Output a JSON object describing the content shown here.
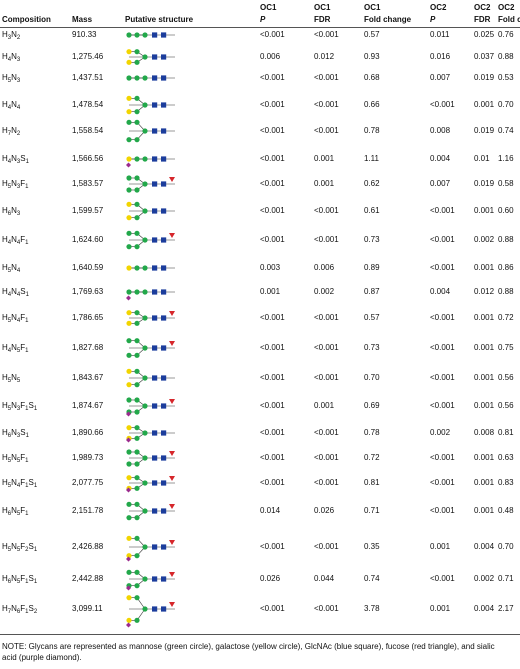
{
  "header": [
    {
      "label": "Composition"
    },
    {
      "label": "Mass"
    },
    {
      "label": "Putative structure"
    },
    {
      "group": "OC1",
      "label": "P"
    },
    {
      "group": "OC1",
      "label": "FDR"
    },
    {
      "group": "OC1",
      "label": "Fold change"
    },
    {
      "group": "OC2",
      "label": "P"
    },
    {
      "group": "OC2",
      "label": "FDR"
    },
    {
      "group": "OC2",
      "label": "Fold change"
    }
  ],
  "table": {
    "rows": [
      [
        "H3N2",
        "910.33",
        "<0.001",
        "<0.001",
        "0.57",
        "0.011",
        "0.025",
        "0.76"
      ],
      [
        "H4N3",
        "1,275.46",
        "0.006",
        "0.012",
        "0.93",
        "0.016",
        "0.037",
        "0.88"
      ],
      [
        "H5N3",
        "1,437.51",
        "<0.001",
        "<0.001",
        "0.68",
        "0.007",
        "0.019",
        "0.53"
      ],
      [
        "H4N4",
        "1,478.54",
        "<0.001",
        "<0.001",
        "0.66",
        "<0.001",
        "0.001",
        "0.70"
      ],
      [
        "H7N2",
        "1,558.54",
        "<0.001",
        "<0.001",
        "0.78",
        "0.008",
        "0.019",
        "0.74"
      ],
      [
        "H4N3S1",
        "1,566.56",
        "<0.001",
        "0.001",
        "1.11",
        "0.004",
        "0.01",
        "1.16"
      ],
      [
        "H5N3F1",
        "1,583.57",
        "<0.001",
        "0.001",
        "0.62",
        "0.007",
        "0.019",
        "0.58"
      ],
      [
        "H6N3",
        "1,599.57",
        "<0.001",
        "<0.001",
        "0.61",
        "<0.001",
        "0.001",
        "0.60"
      ],
      [
        "H4N4F1",
        "1,624.60",
        "<0.001",
        "<0.001",
        "0.73",
        "<0.001",
        "0.002",
        "0.88"
      ],
      [
        "H5N4",
        "1,640.59",
        "0.003",
        "0.006",
        "0.89",
        "<0.001",
        "0.001",
        "0.86"
      ],
      [
        "H4N4S1",
        "1,769.63",
        "0.001",
        "0.002",
        "0.87",
        "0.004",
        "0.012",
        "0.88"
      ],
      [
        "H5N4F1",
        "1,786.65",
        "<0.001",
        "<0.001",
        "0.57",
        "<0.001",
        "0.001",
        "0.72"
      ],
      [
        "H4N5F1",
        "1,827.68",
        "<0.001",
        "<0.001",
        "0.73",
        "<0.001",
        "0.001",
        "0.75"
      ],
      [
        "H5N5",
        "1,843.67",
        "<0.001",
        "<0.001",
        "0.70",
        "<0.001",
        "0.001",
        "0.56"
      ],
      [
        "H5N3F1S1",
        "1,874.67",
        "<0.001",
        "0.001",
        "0.69",
        "<0.001",
        "0.001",
        "0.56"
      ],
      [
        "H6N3S1",
        "1,890.66",
        "<0.001",
        "<0.001",
        "0.78",
        "0.002",
        "0.008",
        "0.81"
      ],
      [
        "H5N5F1",
        "1,989.73",
        "<0.001",
        "<0.001",
        "0.72",
        "<0.001",
        "0.001",
        "0.63"
      ],
      [
        "H5N4F1S1",
        "2,077.75",
        "<0.001",
        "<0.001",
        "0.81",
        "<0.001",
        "0.001",
        "0.83"
      ],
      [
        "H6N5F1",
        "2,151.78",
        "0.014",
        "0.026",
        "0.71",
        "<0.001",
        "0.001",
        "0.48"
      ],
      [
        "H5N5F2S1",
        "2,426.88",
        "<0.001",
        "<0.001",
        "0.35",
        "0.001",
        "0.004",
        "0.70"
      ],
      [
        "H6N5F1S1",
        "2,442.88",
        "0.026",
        "0.044",
        "0.74",
        "<0.001",
        "0.002",
        "0.71"
      ],
      [
        "H7N6F1S2",
        "3,099.11",
        "<0.001",
        "<0.001",
        "3.78",
        "0.001",
        "0.004",
        "2.17"
      ]
    ]
  },
  "note": "NOTE: Glycans are represented as mannose (green circle), galactose (yellow circle), GlcNAc (blue square), fucose (red triangle), and sialic acid (purple diamond)."
}
